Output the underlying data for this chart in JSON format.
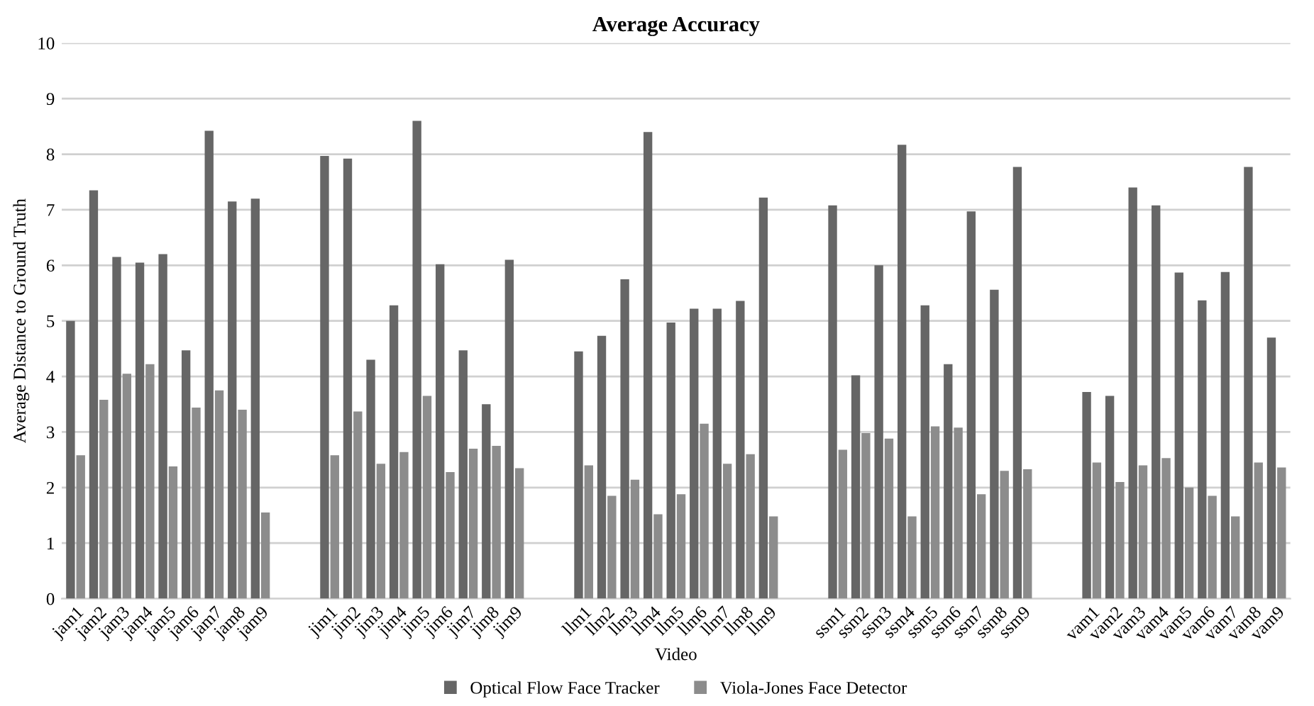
{
  "chart_data": {
    "type": "bar",
    "title": "Average Accuracy",
    "xlabel": "Video",
    "ylabel": "Average Distance to Ground Truth",
    "categories": [
      "jam1",
      "jam2",
      "jam3",
      "jam4",
      "jam5",
      "jam6",
      "jam7",
      "jam8",
      "jam9",
      null,
      null,
      "jim1",
      "jim2",
      "jim3",
      "jim4",
      "jim5",
      "jim6",
      "jim7",
      "jim8",
      "jim9",
      null,
      null,
      "llm1",
      "llm2",
      "llm3",
      "llm4",
      "llm5",
      "llm6",
      "llm7",
      "llm8",
      "llm9",
      null,
      null,
      "ssm1",
      "ssm2",
      "ssm3",
      "ssm4",
      "ssm5",
      "ssm6",
      "ssm7",
      "ssm8",
      "ssm9",
      null,
      null,
      "vam1",
      "vam2",
      "vam3",
      "vam4",
      "vam5",
      "vam6",
      "vam7",
      "vam8",
      "vam9"
    ],
    "series": [
      {
        "name": "Optical Flow Face Tracker",
        "color": "#666666",
        "values": [
          5.0,
          7.35,
          6.15,
          6.05,
          6.2,
          4.47,
          8.42,
          7.15,
          7.2,
          null,
          null,
          7.97,
          7.92,
          4.3,
          5.28,
          8.6,
          6.02,
          4.47,
          3.5,
          6.1,
          null,
          null,
          4.45,
          4.73,
          5.75,
          8.4,
          4.97,
          5.22,
          5.22,
          5.36,
          7.22,
          null,
          null,
          7.08,
          4.02,
          6.0,
          8.17,
          5.28,
          4.22,
          6.97,
          5.56,
          7.77,
          null,
          null,
          3.72,
          3.65,
          7.4,
          7.08,
          5.87,
          5.37,
          5.88,
          7.77,
          4.7
        ]
      },
      {
        "name": "Viola-Jones Face Detector",
        "color": "#8c8c8c",
        "values": [
          2.58,
          3.58,
          4.05,
          4.22,
          2.38,
          3.44,
          3.75,
          3.4,
          1.55,
          null,
          null,
          2.58,
          3.37,
          2.43,
          2.64,
          3.65,
          2.28,
          2.7,
          2.75,
          2.35,
          null,
          null,
          2.4,
          1.85,
          2.14,
          1.52,
          1.88,
          3.15,
          2.43,
          2.6,
          1.48,
          null,
          null,
          2.68,
          2.98,
          2.88,
          1.48,
          3.1,
          3.08,
          1.88,
          2.3,
          2.33,
          null,
          null,
          2.45,
          2.1,
          2.4,
          2.53,
          2.0,
          1.85,
          1.48,
          2.45,
          2.36
        ]
      }
    ],
    "ylim": [
      0,
      10
    ],
    "yticks": [
      0,
      1,
      2,
      3,
      4,
      5,
      6,
      7,
      8,
      9,
      10
    ],
    "grid": "y",
    "legend": "bottom"
  }
}
